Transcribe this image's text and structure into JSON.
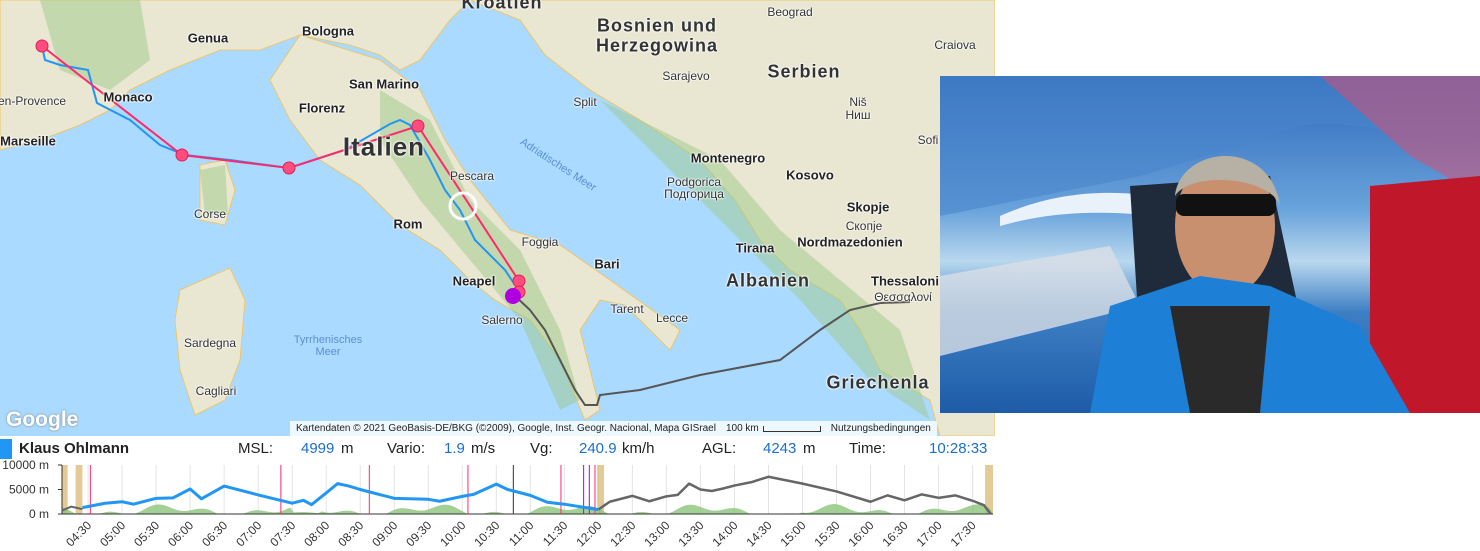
{
  "map": {
    "labels": [
      "Kroatien",
      "Bosnien und",
      "Herzegowina",
      "Beograd",
      "Craiova",
      "Genua",
      "Bologna",
      "San Marino",
      "Serbien",
      "Sarajevo",
      "Monaco",
      "-en-Provence",
      "Split",
      "Niš",
      "Ниш",
      "Florenz",
      "Marseille",
      "Italien",
      "Sofi",
      "Montenegro",
      "Pescara",
      "Adriatisches Meer",
      "Podgorica",
      "Подгорица",
      "Kosovo",
      "Corse",
      "Rom",
      "Skopje",
      "Скопје",
      "Tirana",
      "Nordmazedonien",
      "Foggia",
      "Bari",
      "Neapel",
      "Albanien",
      "Thessaloni",
      "Θεσσαλονί",
      "Tarent",
      "Lecce",
      "Salerno",
      "Tyrrhenisches",
      "Meer",
      "Sardegna",
      "Cagliari",
      "Griechenla"
    ],
    "logo": "Google",
    "attribution": "Kartendaten © 2021 GeoBasis-DE/BKG (©2009), Google, Inst. Geogr. Nacional, Mapa GISrael",
    "scale": "100 km",
    "terms": "Nutzungsbedingungen",
    "colors": {
      "sea": "#aadaff",
      "land": "#ebe7d6",
      "route": "#ff2a6d",
      "track": "#2196f3",
      "other_track": "#555555",
      "current": "#b000e0"
    }
  },
  "status": {
    "pilot": "Klaus Ohlmann",
    "pilot_color": "#2196f3",
    "msl_label": "MSL:",
    "msl_value": "4999",
    "msl_unit": "m",
    "vario_label": "Vario:",
    "vario_value": "1.9",
    "vario_unit": "m/s",
    "vg_label": "Vg:",
    "vg_value": "240.9",
    "vg_unit": "km/h",
    "agl_label": "AGL:",
    "agl_value": "4243",
    "agl_unit": "m",
    "time_label": "Time:",
    "time_value": "10:28:33"
  },
  "chart_data": {
    "type": "line",
    "ylim": [
      0,
      10000
    ],
    "yticks": [
      "0 m",
      "5000 m",
      "10000 m"
    ],
    "xticks": [
      "04:30",
      "05:00",
      "05:30",
      "06:00",
      "06:30",
      "07:00",
      "07:30",
      "08:00",
      "08:30",
      "09:00",
      "09:30",
      "10:00",
      "10:30",
      "11:00",
      "11:30",
      "12:00",
      "12:30",
      "13:00",
      "13:30",
      "14:00",
      "14:30",
      "15:00",
      "15:30",
      "16:00",
      "16:30",
      "17:00",
      "17:30"
    ],
    "xrange": [
      "04:07",
      "17:48"
    ],
    "grid": true,
    "series": [
      {
        "color": "#2196f3",
        "points": [
          [
            "04:25",
            1300
          ],
          [
            "04:45",
            2200
          ],
          [
            "05:00",
            2500
          ],
          [
            "05:10",
            2000
          ],
          [
            "05:30",
            3200
          ],
          [
            "05:45",
            3300
          ],
          [
            "06:00",
            5100
          ],
          [
            "06:10",
            3100
          ],
          [
            "06:30",
            5700
          ],
          [
            "07:00",
            3900
          ],
          [
            "07:30",
            2200
          ],
          [
            "07:40",
            2800
          ],
          [
            "07:47",
            1900
          ],
          [
            "08:00",
            4300
          ],
          [
            "08:10",
            6200
          ],
          [
            "08:20",
            5700
          ],
          [
            "08:30",
            5000
          ],
          [
            "09:00",
            3200
          ],
          [
            "09:30",
            3000
          ],
          [
            "09:40",
            2600
          ],
          [
            "10:00",
            3600
          ],
          [
            "10:10",
            4000
          ],
          [
            "10:30",
            6100
          ],
          [
            "10:40",
            5000
          ],
          [
            "11:00",
            3800
          ],
          [
            "11:15",
            2400
          ],
          [
            "11:30",
            2000
          ],
          [
            "12:00",
            900
          ]
        ]
      },
      {
        "color": "#666666",
        "points": [
          [
            "04:07",
            700
          ],
          [
            "04:15",
            1500
          ],
          [
            "04:25",
            1000
          ],
          [
            "12:00",
            900
          ],
          [
            "12:10",
            2500
          ],
          [
            "12:30",
            3700
          ],
          [
            "12:45",
            2600
          ],
          [
            "13:00",
            3600
          ],
          [
            "13:10",
            3900
          ],
          [
            "13:20",
            6200
          ],
          [
            "13:30",
            5000
          ],
          [
            "13:40",
            4700
          ],
          [
            "13:50",
            5200
          ],
          [
            "14:00",
            5800
          ],
          [
            "14:15",
            6500
          ],
          [
            "14:30",
            7600
          ],
          [
            "15:00",
            6200
          ],
          [
            "15:30",
            4600
          ],
          [
            "16:00",
            2500
          ],
          [
            "16:15",
            3800
          ],
          [
            "16:30",
            2800
          ],
          [
            "16:45",
            4000
          ],
          [
            "17:00",
            3300
          ],
          [
            "17:15",
            3800
          ],
          [
            "17:30",
            2700
          ],
          [
            "17:40",
            1800
          ],
          [
            "17:46",
            0
          ]
        ]
      }
    ],
    "markers": [
      {
        "time": "04:32",
        "color": "#ff2a6d"
      },
      {
        "time": "07:20",
        "color": "#ff2a6d"
      },
      {
        "time": "08:38",
        "color": "#ff2a6d"
      },
      {
        "time": "10:05",
        "color": "#ff2a6d"
      },
      {
        "time": "10:45",
        "color": "#333333"
      },
      {
        "time": "11:27",
        "color": "#ff2a6d"
      },
      {
        "time": "11:47",
        "color": "#b000e0"
      },
      {
        "time": "11:52",
        "color": "#b000e0"
      },
      {
        "time": "11:57",
        "color": "#ff2a6d"
      }
    ]
  }
}
